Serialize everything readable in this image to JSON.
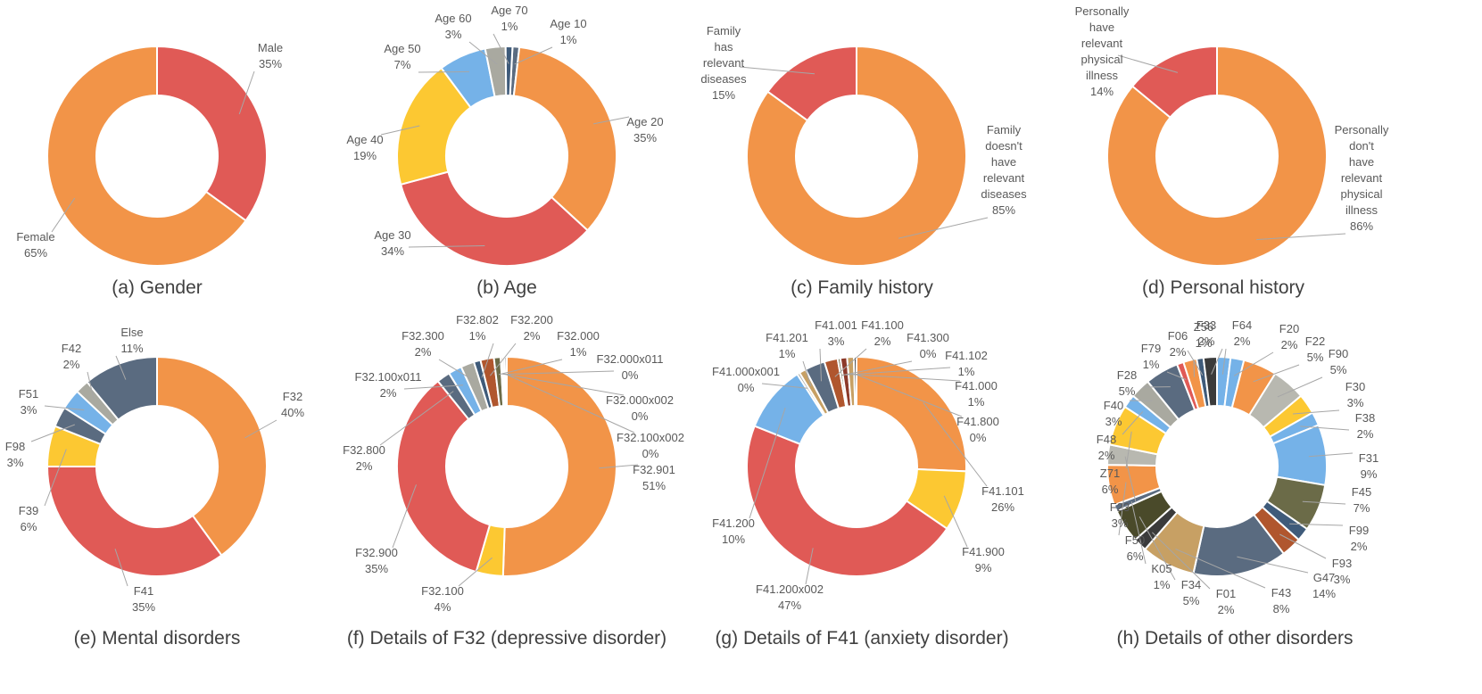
{
  "palette": {
    "orange": "#f29448",
    "red": "#e05a56",
    "yellow": "#fcc832",
    "blue": "#75b2e8",
    "slate": "#5a6b80",
    "gray": "#a9a9a0",
    "brown": "#b0562e",
    "darkred": "#8c3a2a",
    "olive": "#6b6b48",
    "darkolive": "#4a4a2a",
    "navy": "#3f5b7a",
    "lightgray": "#b8b8b0",
    "tan": "#c7a064",
    "dark": "#3b3b3b",
    "separator": "#ffffff",
    "leader": "#a6a6a6",
    "label": "#595959",
    "caption": "#404040"
  },
  "chart_data": [
    {
      "type": "pie",
      "title": "(a) Gender",
      "slices": [
        {
          "label": "Male",
          "pct": "35%",
          "value": 35,
          "color": "red"
        },
        {
          "label": "Female",
          "pct": "65%",
          "value": 65,
          "color": "orange"
        }
      ]
    },
    {
      "type": "pie",
      "title": "(b) Age",
      "slices": [
        {
          "label": "Age 10",
          "pct": "1%",
          "value": 1,
          "color": "slate"
        },
        {
          "label": "Age 20",
          "pct": "35%",
          "value": 35,
          "color": "orange"
        },
        {
          "label": "Age 30",
          "pct": "34%",
          "value": 34,
          "color": "red"
        },
        {
          "label": "Age 40",
          "pct": "19%",
          "value": 19,
          "color": "yellow"
        },
        {
          "label": "Age 50",
          "pct": "7%",
          "value": 7,
          "color": "blue"
        },
        {
          "label": "Age 60",
          "pct": "3%",
          "value": 3,
          "color": "gray"
        },
        {
          "label": "Age 70",
          "pct": "1%",
          "value": 1,
          "color": "navy"
        }
      ]
    },
    {
      "type": "pie",
      "title": "(c) Family history",
      "slices": [
        {
          "label": "Family doesn't have relevant diseases",
          "pct": "85%",
          "value": 85,
          "color": "orange"
        },
        {
          "label": "Family has relevant diseases",
          "pct": "15%",
          "value": 15,
          "color": "red"
        }
      ]
    },
    {
      "type": "pie",
      "title": "(d) Personal history",
      "slices": [
        {
          "label": "Personally don't have relevant physical illness",
          "pct": "86%",
          "value": 86,
          "color": "orange"
        },
        {
          "label": "Personally have relevant physical illness",
          "pct": "14%",
          "value": 14,
          "color": "red"
        }
      ]
    },
    {
      "type": "pie",
      "title": "(e) Mental disorders",
      "slices": [
        {
          "label": "F32",
          "pct": "40%",
          "value": 40,
          "color": "orange"
        },
        {
          "label": "F41",
          "pct": "35%",
          "value": 35,
          "color": "red"
        },
        {
          "label": "F39",
          "pct": "6%",
          "value": 6,
          "color": "yellow"
        },
        {
          "label": "F98",
          "pct": "3%",
          "value": 3,
          "color": "slate"
        },
        {
          "label": "F51",
          "pct": "3%",
          "value": 3,
          "color": "blue"
        },
        {
          "label": "F42",
          "pct": "2%",
          "value": 2,
          "color": "gray"
        },
        {
          "label": "Else",
          "pct": "11%",
          "value": 11,
          "color": "slate"
        }
      ]
    },
    {
      "type": "pie",
      "title": "(f) Details of F32 (depressive disorder)",
      "slices": [
        {
          "label": "F32.901",
          "pct": "51%",
          "value": 51,
          "color": "orange"
        },
        {
          "label": "F32.100",
          "pct": "4%",
          "value": 4,
          "color": "yellow"
        },
        {
          "label": "F32.900",
          "pct": "35%",
          "value": 35,
          "color": "red"
        },
        {
          "label": "F32.800",
          "pct": "2%",
          "value": 2,
          "color": "slate"
        },
        {
          "label": "F32.100x011",
          "pct": "2%",
          "value": 2,
          "color": "blue"
        },
        {
          "label": "F32.300",
          "pct": "2%",
          "value": 2,
          "color": "gray"
        },
        {
          "label": "F32.802",
          "pct": "1%",
          "value": 1,
          "color": "navy"
        },
        {
          "label": "F32.200",
          "pct": "2%",
          "value": 2,
          "color": "brown"
        },
        {
          "label": "F32.000",
          "pct": "1%",
          "value": 1,
          "color": "olive"
        },
        {
          "label": "F32.000x011",
          "pct": "0%",
          "value": 0.3,
          "color": "tan"
        },
        {
          "label": "F32.000x002",
          "pct": "0%",
          "value": 0.3,
          "color": "lightgray"
        },
        {
          "label": "F32.100x002",
          "pct": "0%",
          "value": 0.3,
          "color": "dark"
        }
      ]
    },
    {
      "type": "pie",
      "title": "(g) Details of F41 (anxiety disorder)",
      "slices": [
        {
          "label": "F41.101",
          "pct": "26%",
          "value": 26,
          "color": "orange"
        },
        {
          "label": "F41.900",
          "pct": "9%",
          "value": 9,
          "color": "yellow"
        },
        {
          "label": "F41.200x002",
          "pct": "47%",
          "value": 47,
          "color": "red"
        },
        {
          "label": "F41.200",
          "pct": "10%",
          "value": 10,
          "color": "blue"
        },
        {
          "label": "F41.000x001",
          "pct": "0%",
          "value": 0.4,
          "color": "gray"
        },
        {
          "label": "F41.201",
          "pct": "1%",
          "value": 1,
          "color": "tan"
        },
        {
          "label": "F41.001",
          "pct": "3%",
          "value": 3,
          "color": "slate"
        },
        {
          "label": "F41.100",
          "pct": "2%",
          "value": 2,
          "color": "brown"
        },
        {
          "label": "F41.300",
          "pct": "0%",
          "value": 0.4,
          "color": "olive"
        },
        {
          "label": "F41.102",
          "pct": "1%",
          "value": 1,
          "color": "darkred"
        },
        {
          "label": "F41.000",
          "pct": "1%",
          "value": 1,
          "color": "tan"
        },
        {
          "label": "F41.800",
          "pct": "0%",
          "value": 0.4,
          "color": "dark"
        }
      ]
    },
    {
      "type": "pie",
      "title": "(h) Details of other disorders",
      "slices": [
        {
          "label": "F64",
          "pct": "2%",
          "value": 2,
          "color": "blue"
        },
        {
          "label": "F20",
          "pct": "2%",
          "value": 2,
          "color": "blue"
        },
        {
          "label": "F22",
          "pct": "5%",
          "value": 5,
          "color": "orange"
        },
        {
          "label": "F90",
          "pct": "5%",
          "value": 5,
          "color": "lightgray"
        },
        {
          "label": "F30",
          "pct": "3%",
          "value": 3,
          "color": "yellow"
        },
        {
          "label": "F38",
          "pct": "2%",
          "value": 2,
          "color": "blue"
        },
        {
          "label": "F31",
          "pct": "9%",
          "value": 9,
          "color": "blue"
        },
        {
          "label": "F45",
          "pct": "7%",
          "value": 7,
          "color": "olive"
        },
        {
          "label": "F99",
          "pct": "2%",
          "value": 2,
          "color": "navy"
        },
        {
          "label": "F93",
          "pct": "3%",
          "value": 3,
          "color": "brown"
        },
        {
          "label": "G47",
          "pct": "14%",
          "value": 14,
          "color": "slate"
        },
        {
          "label": "F43",
          "pct": "8%",
          "value": 8,
          "color": "tan"
        },
        {
          "label": "F01",
          "pct": "2%",
          "value": 2,
          "color": "dark"
        },
        {
          "label": "F34",
          "pct": "5%",
          "value": 5,
          "color": "darkolive"
        },
        {
          "label": "K05",
          "pct": "1%",
          "value": 1,
          "color": "slate"
        },
        {
          "label": "F50",
          "pct": "6%",
          "value": 6,
          "color": "orange"
        },
        {
          "label": "F23",
          "pct": "3%",
          "value": 3,
          "color": "lightgray"
        },
        {
          "label": "Z71",
          "pct": "6%",
          "value": 6,
          "color": "yellow"
        },
        {
          "label": "F48",
          "pct": "2%",
          "value": 2,
          "color": "blue"
        },
        {
          "label": "F40",
          "pct": "3%",
          "value": 3,
          "color": "gray"
        },
        {
          "label": "F28",
          "pct": "5%",
          "value": 5,
          "color": "slate"
        },
        {
          "label": "F79",
          "pct": "1%",
          "value": 1,
          "color": "red"
        },
        {
          "label": "F06",
          "pct": "2%",
          "value": 2,
          "color": "orange"
        },
        {
          "label": "Z56",
          "pct": "1%",
          "value": 1,
          "color": "navy"
        },
        {
          "label": "F33",
          "pct": "2%",
          "value": 2,
          "color": "dark"
        }
      ]
    }
  ]
}
